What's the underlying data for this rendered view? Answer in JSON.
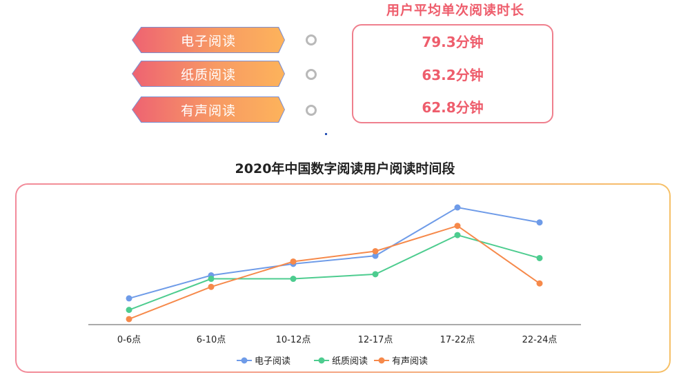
{
  "reading_types": [
    {
      "label": "电子阅读"
    },
    {
      "label": "纸质阅读"
    },
    {
      "label": "有声阅读"
    }
  ],
  "avg_panel": {
    "title": "用户平均单次阅读时长",
    "values": [
      "79.3分钟",
      "63.2分钟",
      "62.8分钟"
    ]
  },
  "colors": {
    "accent": "#ee5d6c",
    "electronic": "#6e9be8",
    "paper": "#4dcc8f",
    "audio": "#f6894a"
  },
  "chart_data": {
    "type": "line",
    "title": "2020年中国数字阅读用户阅读时间段",
    "categories": [
      "0-6点",
      "6-10点",
      "10-12点",
      "12-17点",
      "17-22点",
      "22-24点"
    ],
    "ylim": [
      0,
      100
    ],
    "grid": false,
    "legend_position": "bottom",
    "series": [
      {
        "name": "电子阅读",
        "values": [
          21,
          41,
          51,
          58,
          100,
          87
        ]
      },
      {
        "name": "纸质阅读",
        "values": [
          11,
          38,
          38,
          42,
          76,
          56
        ]
      },
      {
        "name": "有声阅读",
        "values": [
          3,
          31,
          53,
          62,
          84,
          34
        ]
      }
    ]
  }
}
